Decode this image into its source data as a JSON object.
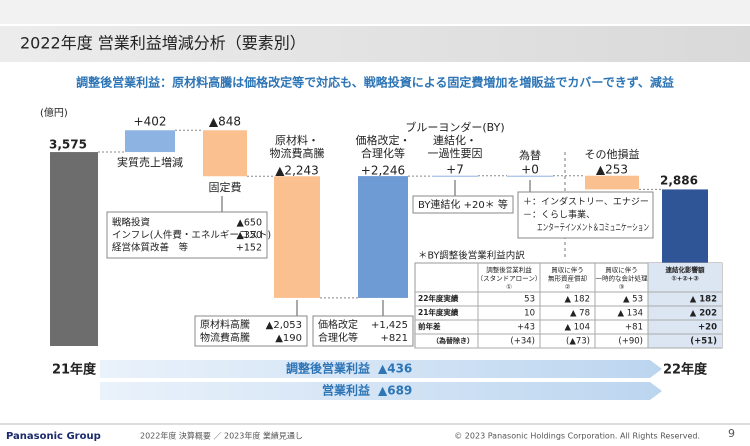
{
  "header": {
    "title": "2022年度  営業利益増減分析（要素別）"
  },
  "headline": "調整後営業利益：原材料高騰は価格改定等で対応も、戦略投資による固定費増加を増販益でカバーできず、減益",
  "chart_data": {
    "type": "waterfall",
    "unit": "(億円)",
    "categories": [
      "21年度",
      "実質売上増減",
      "固定費",
      "原材料・\n物流費高騰",
      "価格改定・\n合理化等",
      "ブルーヨンダー(BY)\n連結化・\n一過性要因",
      "為替",
      "その他損益",
      "22年度"
    ],
    "values": [
      3575,
      402,
      -848,
      -2243,
      2246,
      7,
      0,
      -253,
      2886
    ],
    "value_labels": [
      "3,575",
      "+402",
      "▲848",
      "▲2,243",
      "+2,246",
      "+7",
      "+0",
      "▲253",
      "2,886"
    ],
    "colors": [
      "#6d6d6d",
      "#8db3e2",
      "#fac090",
      "#fac090",
      "#6f9bd4",
      "#8db3e2",
      "#8db3e2",
      "#fac090",
      "#2f5597"
    ],
    "ylim": [
      0,
      4000
    ]
  },
  "notes": {
    "fixed_cost": [
      [
        "戦略投資",
        "▲650"
      ],
      [
        "インフレ(人件費・エネルギーコスト)",
        "▲350"
      ],
      [
        "経営体質改善　等",
        "+152"
      ]
    ],
    "materials": [
      [
        "原材料高騰",
        "▲2,053"
      ],
      [
        "物流費高騰",
        "▲190"
      ]
    ],
    "pricing": [
      [
        "価格改定",
        "+1,425"
      ],
      [
        "合理化等",
        "+821"
      ]
    ],
    "by": "BY連結化 +20＊ 等",
    "fx": [
      "＋：インダストリー、エナジー",
      "－：くらし事業、",
      "エンターテインメント＆コミュニケーション"
    ]
  },
  "table": {
    "title": "＊BY調整後営業利益内訳",
    "columns": [
      "調整後営業利益\n（スタンドアローン）\n①",
      "買収に伴う\n無形資産償却\n②",
      "買収に伴う\n一時的な会計処理\n③",
      "連結化影響額\n①+②+③"
    ],
    "rows": [
      {
        "label": "22年度実績",
        "cells": [
          "53",
          "▲ 182",
          "▲ 53",
          "▲ 182"
        ]
      },
      {
        "label": "21年度実績",
        "cells": [
          "10",
          "▲ 78",
          "▲ 134",
          "▲ 202"
        ]
      },
      {
        "label": "前年差",
        "cells": [
          "+43",
          "▲ 104",
          "+81",
          "+20"
        ]
      },
      {
        "label": "（為替除き）",
        "cells": [
          "(+34)",
          "(▲73)",
          "(+90)",
          "(+51)"
        ]
      }
    ]
  },
  "summary": [
    {
      "label": "調整後営業利益",
      "value": "▲436"
    },
    {
      "label": "営業利益",
      "value": "▲689"
    }
  ],
  "footer": {
    "brand": "Panasonic Group",
    "doc": "2022年度 決算概要 ／ 2023年度 業績見通し",
    "copyright": "© 2023 Panasonic Holdings Corporation. All Rights Reserved.",
    "page": "9"
  }
}
